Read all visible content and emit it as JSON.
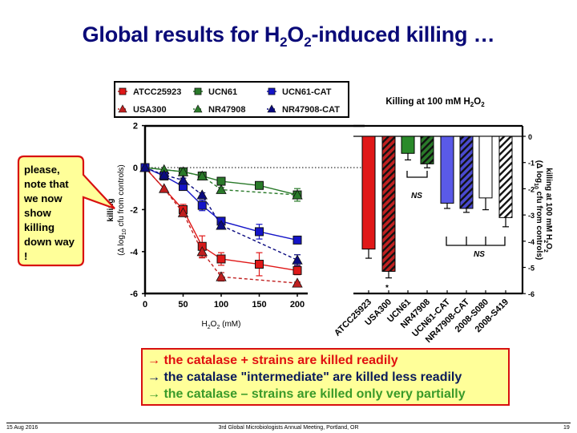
{
  "slide": {
    "title_parts": [
      "Global results for H",
      "2",
      "O",
      "2",
      "-induced killing …"
    ],
    "callout_text": "please, note that we now show killing down way !",
    "conclusions": [
      {
        "arrow": "→",
        "text": " the catalase + strains are killed readily",
        "color": "#e01010"
      },
      {
        "arrow": "→",
        "text": " the catalase \"intermediate\" are killed less readily",
        "color": "#0a1a5a"
      },
      {
        "arrow": "→",
        "text": " the catalase – strains are killed only very partially",
        "color": "#3a9a2a"
      }
    ],
    "footer": {
      "date": "15 Aug 2016",
      "event": "3rd Global Microbiologists Annual Meeting, Portland, OR",
      "page": "19"
    }
  },
  "colors": {
    "title": "#0a0a78",
    "red": "#e01818",
    "darkred": "#c02020",
    "green": "#2a7a2a",
    "blue": "#1414c8",
    "lightblue": "#5a5ae8",
    "callout_bg": "#ffff99",
    "callout_border": "#d81010"
  },
  "chart_data": [
    {
      "type": "line",
      "title": "",
      "xlabel": "H2O2 (mM)",
      "ylabel": "killing (Δ log10 cfu from controls)",
      "xlim": [
        0,
        210
      ],
      "ylim": [
        -6,
        2
      ],
      "xticks": [
        0,
        50,
        100,
        150,
        200
      ],
      "yticks": [
        2,
        0,
        -2,
        -4,
        -6
      ],
      "grid": false,
      "reference_line": {
        "y": 0,
        "style": "dotted"
      },
      "legend_position": "top (boxed, 2 rows x 3 cols)",
      "series": [
        {
          "name": "ATCC25923",
          "marker": "square",
          "line": "solid",
          "color": "#e01818",
          "x": [
            0,
            50,
            75,
            100,
            150,
            200
          ],
          "y": [
            0,
            -2.0,
            -3.75,
            -4.35,
            -4.6,
            -4.9
          ],
          "err": [
            0,
            0.25,
            0.5,
            0.3,
            0.55,
            0.2
          ]
        },
        {
          "name": "USA300",
          "marker": "triangle",
          "line": "dashed",
          "color": "#c02020",
          "x": [
            0,
            25,
            50,
            75,
            100,
            200
          ],
          "y": [
            0,
            -1.0,
            -2.15,
            -4.0,
            -5.2,
            -5.5
          ],
          "err": [
            0,
            0,
            0.1,
            0.3,
            0.2,
            0.05
          ]
        },
        {
          "name": "UCN61",
          "marker": "square",
          "line": "solid",
          "color": "#2a7a2a",
          "x": [
            0,
            50,
            75,
            100,
            150,
            200
          ],
          "y": [
            0,
            -0.2,
            -0.4,
            -0.65,
            -0.85,
            -1.3
          ],
          "err": [
            0,
            0.15,
            0.1,
            0.15,
            0.05,
            0.3
          ]
        },
        {
          "name": "NR47908",
          "marker": "triangle",
          "line": "dashed",
          "color": "#2a7a2a",
          "x": [
            0,
            25,
            50,
            75,
            100,
            200
          ],
          "y": [
            0,
            -0.1,
            -0.2,
            -0.4,
            -1.05,
            -1.3
          ],
          "err": [
            0,
            0,
            0.1,
            0.05,
            0.1,
            0.05
          ]
        },
        {
          "name": "UCN61-CAT",
          "marker": "square",
          "line": "solid",
          "color": "#1414c8",
          "x": [
            0,
            25,
            50,
            75,
            100,
            150,
            200
          ],
          "y": [
            0,
            -0.4,
            -0.9,
            -1.8,
            -2.55,
            -3.05,
            -3.45
          ],
          "err": [
            0,
            0.05,
            0.1,
            0.25,
            0.15,
            0.35,
            0.05
          ]
        },
        {
          "name": "NR47908-CAT",
          "marker": "triangle",
          "line": "dashed",
          "color": "#0a0a80",
          "x": [
            0,
            25,
            50,
            75,
            100,
            200
          ],
          "y": [
            0,
            -0.35,
            -0.6,
            -1.3,
            -2.75,
            -4.4
          ],
          "err": [
            0,
            0.05,
            0.1,
            0.1,
            0.1,
            0.25
          ]
        }
      ]
    },
    {
      "type": "bar",
      "title": "Killing at 100 mM H2O2",
      "xlabel": "",
      "ylabel": "killing at 100 mM H2O2 (Δ log10 cfu from controls)",
      "ylim": [
        -6,
        0
      ],
      "yticks": [
        0,
        -1,
        -2,
        -3,
        -4,
        -5,
        -6
      ],
      "y_axis_side": "right",
      "categories": [
        "ATCC25923",
        "USA300",
        "UCN61",
        "NR47908",
        "UCN61-CAT",
        "NR47908-CAT",
        "2008-S080",
        "2008-S419"
      ],
      "values": [
        -4.3,
        -5.15,
        -0.65,
        -1.05,
        -2.55,
        -2.75,
        -2.35,
        -3.1
      ],
      "errors": [
        0.35,
        0.25,
        0.25,
        0.15,
        0.2,
        0.15,
        0.45,
        0.35
      ],
      "fills": [
        "#e01818",
        "#c02020 hatched",
        "#2a8a2a",
        "#2a7a2a hatched",
        "#5a5ae8",
        "#4a4ad0 hatched",
        "#ffffff",
        "#ffffff hatched"
      ],
      "annotations": [
        {
          "text": "*",
          "near": "USA300"
        },
        {
          "text": "NS",
          "bracket": [
            "UCN61",
            "NR47908"
          ]
        },
        {
          "text": "NS",
          "bracket": [
            "UCN61-CAT",
            "NR47908-CAT",
            "2008-S080",
            "2008-S419"
          ]
        }
      ]
    }
  ]
}
